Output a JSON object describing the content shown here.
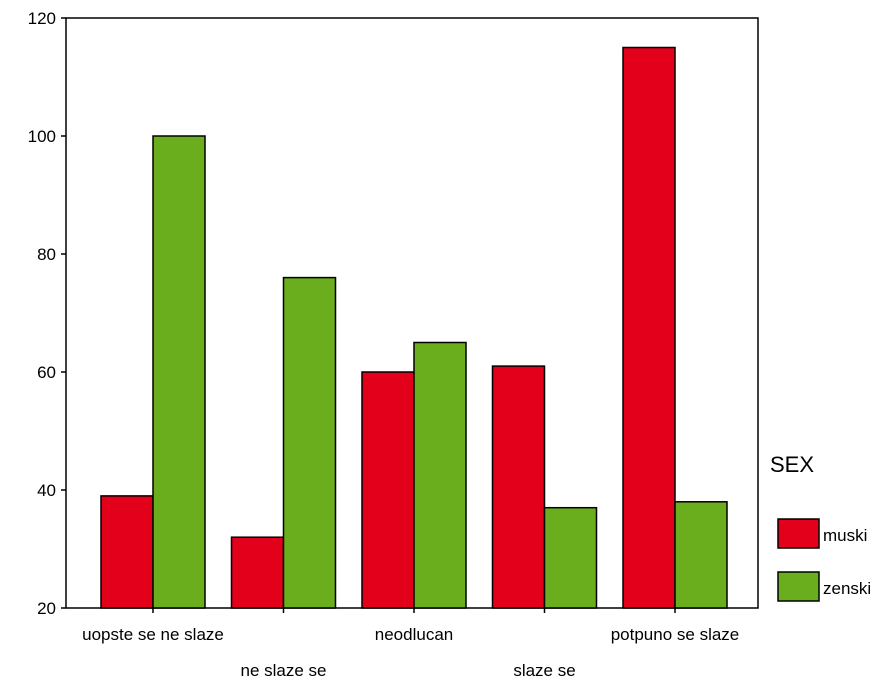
{
  "chart_data": {
    "type": "bar",
    "categories": [
      "uopste se ne slaze",
      "ne slaze se",
      "neodlucan",
      "slaze se",
      "potpuno se slaze"
    ],
    "series": [
      {
        "name": "muski",
        "values": [
          39,
          32,
          60,
          61,
          115
        ],
        "color": "#E3001B"
      },
      {
        "name": "zenski",
        "values": [
          100,
          76,
          65,
          37,
          38
        ],
        "color": "#6AAE1E"
      }
    ],
    "ylim": [
      20,
      120
    ],
    "yticks": [
      20,
      40,
      60,
      80,
      100,
      120
    ],
    "legend": {
      "title": "SEX",
      "position": "right"
    },
    "grid": false,
    "title": "",
    "xlabel": "",
    "ylabel": ""
  }
}
